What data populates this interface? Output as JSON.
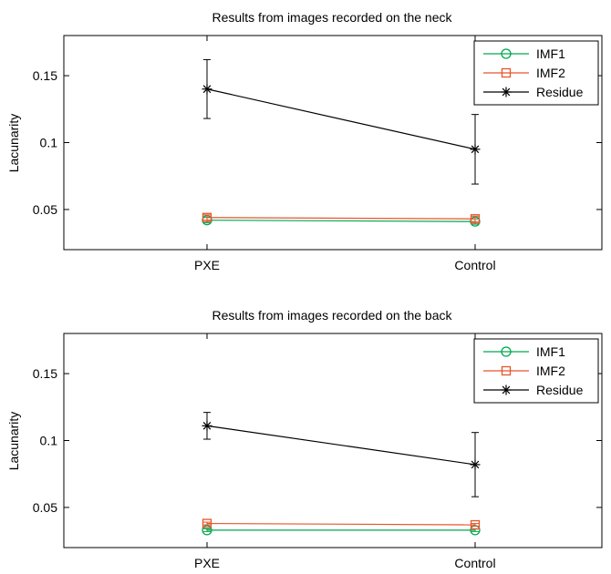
{
  "chart_data": [
    {
      "type": "line",
      "title": "Results from images recorded on the neck",
      "xlabel": "",
      "ylabel": "Lacunarity",
      "categories": [
        "PXE",
        "Control"
      ],
      "ylim": [
        0.02,
        0.18
      ],
      "yticks": [
        "0.05",
        "0.1",
        "0.15"
      ],
      "grid": false,
      "legend": "top-right",
      "series": [
        {
          "name": "IMF1",
          "color": "#00a651",
          "marker": "circle",
          "values": [
            0.042,
            0.041
          ],
          "errors": [
            0.002,
            0.002
          ]
        },
        {
          "name": "IMF2",
          "color": "#e8542a",
          "marker": "square",
          "values": [
            0.044,
            0.043
          ],
          "errors": [
            0.002,
            0.002
          ]
        },
        {
          "name": "Residue",
          "color": "#000000",
          "marker": "asterisk",
          "values": [
            0.14,
            0.095
          ],
          "errors": [
            0.022,
            0.026
          ]
        }
      ]
    },
    {
      "type": "line",
      "title": "Results from images recorded on the back",
      "xlabel": "",
      "ylabel": "Lacunarity",
      "categories": [
        "PXE",
        "Control"
      ],
      "ylim": [
        0.02,
        0.18
      ],
      "yticks": [
        "0.05",
        "0.1",
        "0.15"
      ],
      "grid": false,
      "legend": "top-right",
      "series": [
        {
          "name": "IMF1",
          "color": "#00a651",
          "marker": "circle",
          "values": [
            0.033,
            0.033
          ],
          "errors": [
            0.001,
            0.001
          ]
        },
        {
          "name": "IMF2",
          "color": "#e8542a",
          "marker": "square",
          "values": [
            0.038,
            0.037
          ],
          "errors": [
            0.001,
            0.001
          ]
        },
        {
          "name": "Residue",
          "color": "#000000",
          "marker": "asterisk",
          "values": [
            0.111,
            0.082
          ],
          "errors": [
            0.01,
            0.024
          ]
        }
      ]
    }
  ]
}
